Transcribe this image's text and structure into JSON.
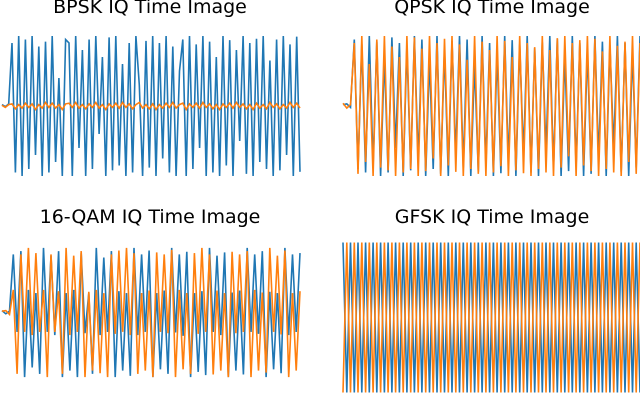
{
  "colors": {
    "i_channel": "#1f77b4",
    "q_channel": "#ff7f0e",
    "background": "#ffffff"
  },
  "chart_data": [
    {
      "type": "line",
      "title": "BPSK IQ Time Image",
      "xlabel": "",
      "ylabel": "",
      "axes_visible": false,
      "grid": false,
      "legend": "none",
      "ylim": [
        -1.2,
        1.2
      ],
      "series": [
        {
          "name": "",
          "color": "#1f77b4",
          "values": [
            0.02,
            -0.01,
            0.03,
            0.9,
            -0.95,
            1.0,
            -1.0,
            0.95,
            -0.9,
            1.0,
            -0.7,
            0.85,
            -1.0,
            0.92,
            -0.95,
            1.0,
            -0.8,
            0.4,
            -1.0,
            0.95,
            0.9,
            -1.0,
            1.0,
            -0.6,
            0.8,
            -1.0,
            0.95,
            -0.9,
            1.0,
            -0.4,
            0.7,
            -1.0,
            0.98,
            -0.92,
            1.0,
            -0.85,
            0.6,
            -1.0,
            0.9,
            -0.95,
            1.0,
            0.3,
            -1.0,
            0.93,
            -0.88,
            1.0,
            -1.0,
            0.9,
            -0.75,
            1.0,
            -0.95,
            0.85,
            -1.0,
            0.5,
            0.95,
            -1.0,
            1.0,
            -0.9,
            0.88,
            -0.6,
            1.0,
            -1.0,
            0.92,
            -0.95,
            0.7,
            -1.0,
            1.0,
            -0.85,
            0.94,
            -1.0,
            0.8,
            -0.5,
            1.0,
            -0.97,
            0.9,
            -1.0,
            0.96,
            -0.8,
            1.0,
            -0.9,
            0.65,
            -1.0,
            0.95,
            -0.92,
            1.0,
            -0.7,
            0.88,
            -1.0,
            0.99,
            -0.94
          ]
        },
        {
          "name": "",
          "color": "#ff7f0e",
          "values": [
            0.01,
            -0.02,
            0.02,
            0.03,
            -0.04,
            0.02,
            -0.03,
            0.04,
            -0.02,
            0.03,
            -0.05,
            0.02,
            -0.03,
            0.05,
            -0.02,
            0.04,
            -0.03,
            0.02,
            -0.05,
            0.03,
            0.04,
            -0.02,
            0.05,
            -0.03,
            0.02,
            -0.04,
            0.03,
            -0.02,
            0.05,
            -0.03,
            0.02,
            -0.05,
            0.03,
            -0.02,
            0.04,
            -0.03,
            0.05,
            -0.02,
            0.03,
            -0.04,
            0.02,
            0.05,
            -0.03,
            0.02,
            -0.04,
            0.03,
            -0.05,
            0.02,
            -0.03,
            0.04,
            -0.02,
            0.05,
            -0.03,
            0.02,
            0.04,
            -0.05,
            0.03,
            -0.02,
            0.04,
            -0.03,
            0.05,
            -0.02,
            0.03,
            -0.04,
            0.02,
            -0.05,
            0.03,
            -0.02,
            0.04,
            -0.03,
            0.05,
            -0.02,
            0.03,
            -0.04,
            0.02,
            -0.05,
            0.04,
            -0.03,
            0.02,
            -0.04,
            0.05,
            -0.02,
            0.03,
            -0.04,
            0.02,
            -0.03,
            0.05,
            -0.02,
            0.04,
            -0.03
          ]
        }
      ]
    },
    {
      "type": "line",
      "title": "QPSK IQ Time Image",
      "xlabel": "",
      "ylabel": "",
      "axes_visible": false,
      "grid": false,
      "legend": "none",
      "ylim": [
        -1.2,
        1.2
      ],
      "series": [
        {
          "name": "",
          "color": "#1f77b4",
          "values": [
            0.02,
            0.03,
            -0.02,
            0.95,
            -0.9,
            0.88,
            -0.95,
            1.0,
            -0.85,
            0.92,
            -1.0,
            0.7,
            -0.95,
            0.98,
            -0.6,
            0.9,
            -1.0,
            0.85,
            -0.92,
            1.0,
            -0.78,
            0.95,
            -1.0,
            0.66,
            -0.9,
            1.0,
            -0.97,
            0.8,
            -1.0,
            0.93,
            -0.7,
            1.0,
            -0.88,
            0.95,
            -1.0,
            0.6,
            -0.94,
            1.0,
            -0.85,
            0.9,
            -1.0,
            0.75,
            -0.96,
            1.0,
            -0.82,
            0.94,
            -1.0,
            0.88,
            -0.7,
            1.0,
            -0.95,
            0.83,
            -1.0,
            0.91,
            -0.65,
            1.0,
            -0.9,
            0.96,
            -1.0,
            0.72,
            -0.93,
            1.0,
            -0.86,
            0.9,
            -1.0,
            0.8,
            -0.97,
            1.0,
            -0.75,
            0.92,
            -1.0,
            0.87,
            -0.6,
            1.0,
            -0.94,
            0.9,
            -1.0,
            0.78,
            -0.88,
            1.0
          ]
        },
        {
          "name": "",
          "color": "#ff7f0e",
          "values": [
            0.04,
            -0.03,
            0.02,
            0.9,
            -0.97,
            1.0,
            -0.8,
            0.6,
            -1.0,
            0.95,
            -0.88,
            1.0,
            -0.92,
            0.85,
            -1.0,
            0.7,
            -0.95,
            1.0,
            -0.9,
            0.98,
            -1.0,
            0.82,
            -0.93,
            1.0,
            -0.75,
            0.9,
            -1.0,
            0.96,
            -0.85,
            1.0,
            -0.94,
            0.88,
            -1.0,
            0.66,
            -0.9,
            1.0,
            -0.97,
            0.92,
            -1.0,
            0.8,
            -0.95,
            1.0,
            -0.86,
            0.93,
            -1.0,
            0.7,
            -0.92,
            1.0,
            -0.96,
            0.9,
            -1.0,
            0.84,
            -0.9,
            1.0,
            -0.95,
            0.8,
            -1.0,
            0.97,
            -0.88,
            1.0,
            -0.72,
            0.9,
            -1.0,
            0.94,
            -0.85,
            1.0,
            -0.93,
            0.96,
            -1.0,
            0.78,
            -0.9,
            1.0,
            -0.95,
            0.86,
            -1.0,
            0.92,
            -0.8,
            1.0,
            -0.97,
            0.9
          ]
        }
      ]
    },
    {
      "type": "line",
      "title": "16-QAM IQ Time Image",
      "xlabel": "",
      "ylabel": "",
      "axes_visible": false,
      "grid": false,
      "legend": "none",
      "ylim": [
        -1.2,
        1.2
      ],
      "series": [
        {
          "name": "",
          "color": "#1f77b4",
          "values": [
            0.03,
            -0.02,
            0.02,
            0.9,
            -0.3,
            0.95,
            -1.0,
            0.35,
            -0.85,
            0.3,
            -0.95,
            1.0,
            -0.3,
            0.88,
            -0.35,
            0.95,
            -1.0,
            0.3,
            -0.9,
            0.35,
            -1.0,
            0.92,
            -0.32,
            0.3,
            -0.95,
            1.0,
            -0.35,
            0.85,
            -0.3,
            0.95,
            -1.0,
            0.33,
            -0.9,
            0.3,
            -0.98,
            1.0,
            -0.35,
            0.9,
            -0.3,
            0.96,
            -1.0,
            0.3,
            -0.88,
            0.34,
            -0.95,
            1.0,
            -0.31,
            0.9,
            -0.36,
            0.94,
            -1.0,
            0.3,
            -0.92,
            0.33,
            -0.97,
            1.0,
            -0.3,
            0.88,
            -0.35,
            0.93,
            -1.0,
            0.31,
            -0.9,
            0.34,
            -0.96,
            1.0,
            -0.3,
            0.9,
            -0.33,
            0.95,
            -1.0,
            0.32,
            -0.88,
            0.3,
            -0.94,
            1.0,
            -0.35,
            0.9,
            -0.3,
            0.92
          ]
        },
        {
          "name": "",
          "color": "#ff7f0e",
          "values": [
            0.02,
            0.03,
            -0.03,
            0.35,
            -0.95,
            0.9,
            -0.3,
            1.0,
            -0.35,
            0.92,
            -0.3,
            0.35,
            -1.0,
            0.9,
            -0.3,
            0.33,
            -0.95,
            1.0,
            -0.35,
            0.88,
            -0.3,
            0.95,
            -1.0,
            0.32,
            -0.9,
            0.35,
            -0.94,
            0.3,
            -1.0,
            0.9,
            -0.33,
            0.96,
            -0.3,
            1.0,
            -0.35,
            0.92,
            -0.95,
            0.3,
            -0.9,
            0.34,
            -1.0,
            0.93,
            -0.3,
            0.9,
            -0.32,
            0.97,
            -1.0,
            0.35,
            -0.88,
            0.3,
            -0.95,
            0.92,
            -0.33,
            1.0,
            -0.3,
            0.9,
            -0.96,
            0.34,
            -0.9,
            0.3,
            -1.0,
            0.94,
            -0.32,
            0.9,
            -0.3,
            0.95,
            -1.0,
            0.35,
            -0.9,
            0.31,
            -0.93,
            1.0,
            -0.3,
            0.88,
            -0.34,
            0.96,
            -1.0,
            0.3,
            -0.9,
            0.33
          ]
        }
      ]
    },
    {
      "type": "line",
      "title": "GFSK IQ Time Image",
      "xlabel": "",
      "ylabel": "",
      "axes_visible": false,
      "grid": false,
      "legend": "none",
      "ylim": [
        -1.1,
        1.1
      ],
      "series": [
        {
          "name": "",
          "color": "#1f77b4",
          "values": [
            1.0,
            -1.0,
            1.0,
            -1.0,
            1.0,
            -1.0,
            1.0,
            -1.0,
            1.0,
            -1.0,
            1.0,
            -1.0,
            1.0,
            -1.0,
            1.0,
            -1.0,
            1.0,
            -1.0,
            1.0,
            -1.0,
            1.0,
            -1.0,
            1.0,
            -1.0,
            1.0,
            -1.0,
            1.0,
            -1.0,
            1.0,
            -1.0,
            1.0,
            -1.0,
            1.0,
            -1.0,
            1.0,
            -1.0,
            1.0,
            -1.0,
            1.0,
            -1.0,
            1.0,
            -1.0,
            1.0,
            -1.0,
            1.0,
            -1.0,
            1.0,
            -1.0,
            1.0,
            -1.0,
            1.0,
            -1.0,
            1.0,
            -1.0,
            1.0,
            -1.0,
            1.0,
            -1.0,
            1.0,
            -1.0,
            1.0,
            -1.0,
            1.0,
            -1.0,
            1.0,
            -1.0,
            1.0,
            -1.0,
            1.0,
            -1.0,
            1.0,
            -1.0,
            1.0,
            -1.0,
            1.0,
            -1.0,
            1.0,
            -1.0,
            1.0,
            -1.0
          ]
        },
        {
          "name": "",
          "color": "#ff7f0e",
          "values": [
            -1.0,
            1.0,
            -1.0,
            1.0,
            -1.0,
            1.0,
            -1.0,
            1.0,
            -1.0,
            1.0,
            -1.0,
            1.0,
            -1.0,
            1.0,
            -1.0,
            1.0,
            -1.0,
            1.0,
            -1.0,
            1.0,
            -1.0,
            1.0,
            -1.0,
            1.0,
            -1.0,
            1.0,
            -1.0,
            1.0,
            -1.0,
            1.0,
            -1.0,
            1.0,
            -1.0,
            1.0,
            -1.0,
            1.0,
            -1.0,
            1.0,
            -1.0,
            1.0,
            -1.0,
            1.0,
            -1.0,
            1.0,
            -1.0,
            1.0,
            -1.0,
            1.0,
            -1.0,
            1.0,
            -1.0,
            1.0,
            -1.0,
            1.0,
            -1.0,
            1.0,
            -1.0,
            1.0,
            -1.0,
            1.0,
            -1.0,
            1.0,
            -1.0,
            1.0,
            -1.0,
            1.0,
            -1.0,
            1.0,
            -1.0,
            1.0,
            -1.0,
            1.0,
            -1.0,
            1.0,
            -1.0,
            1.0,
            -1.0,
            1.0,
            -1.0,
            1.0
          ]
        }
      ]
    }
  ]
}
